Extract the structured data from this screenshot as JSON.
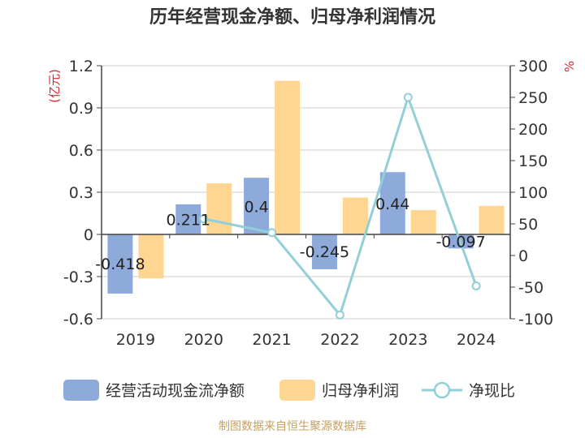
{
  "title": "历年经营现金净额、归母净利润情况",
  "source": "制图数据来自恒生聚源数据库",
  "colors": {
    "cash_flow": "#8eaadb",
    "net_profit": "#ffd592",
    "ratio": "#92cfd6",
    "unit_text": "#d9262c",
    "source_text": "#c8a064"
  },
  "chart_data": {
    "type": "bar",
    "categories": [
      "2019",
      "2020",
      "2021",
      "2022",
      "2023",
      "2024"
    ],
    "y_left": {
      "unit": "(亿元)",
      "ylim": [
        -0.6,
        1.2
      ],
      "ticks": [
        {
          "value": -0.6,
          "label": "-0.6"
        },
        {
          "value": -0.3,
          "label": "-0.3"
        },
        {
          "value": 0,
          "label": "0"
        },
        {
          "value": 0.3,
          "label": "0.3"
        },
        {
          "value": 0.6,
          "label": "0.6"
        },
        {
          "value": 0.9,
          "label": "0.9"
        },
        {
          "value": 1.2,
          "label": "1.2"
        }
      ]
    },
    "y_right": {
      "unit": "%",
      "ylim": [
        -100,
        300
      ],
      "ticks": [
        {
          "value": -100,
          "label": "-100"
        },
        {
          "value": -50,
          "label": "-50"
        },
        {
          "value": 0,
          "label": "0"
        },
        {
          "value": 50,
          "label": "50"
        },
        {
          "value": 100,
          "label": "100"
        },
        {
          "value": 150,
          "label": "150"
        },
        {
          "value": 200,
          "label": "200"
        },
        {
          "value": 250,
          "label": "250"
        },
        {
          "value": 300,
          "label": "300"
        }
      ]
    },
    "series": [
      {
        "name": "经营活动现金流净额",
        "axis": "left",
        "kind": "bar",
        "values": [
          -0.418,
          0.211,
          0.4,
          -0.245,
          0.44,
          -0.097
        ],
        "labels": [
          "-0.418",
          "0.211",
          "0.4",
          "-0.245",
          "0.44",
          "-0.097"
        ]
      },
      {
        "name": "归母净利润",
        "axis": "left",
        "kind": "bar",
        "values": [
          -0.31,
          0.36,
          1.09,
          0.26,
          0.17,
          0.2
        ]
      },
      {
        "name": "净现比",
        "axis": "right",
        "kind": "line",
        "values": [
          null,
          58,
          36,
          -94,
          250,
          -48
        ]
      }
    ],
    "grid": true,
    "legend_position": "bottom"
  }
}
